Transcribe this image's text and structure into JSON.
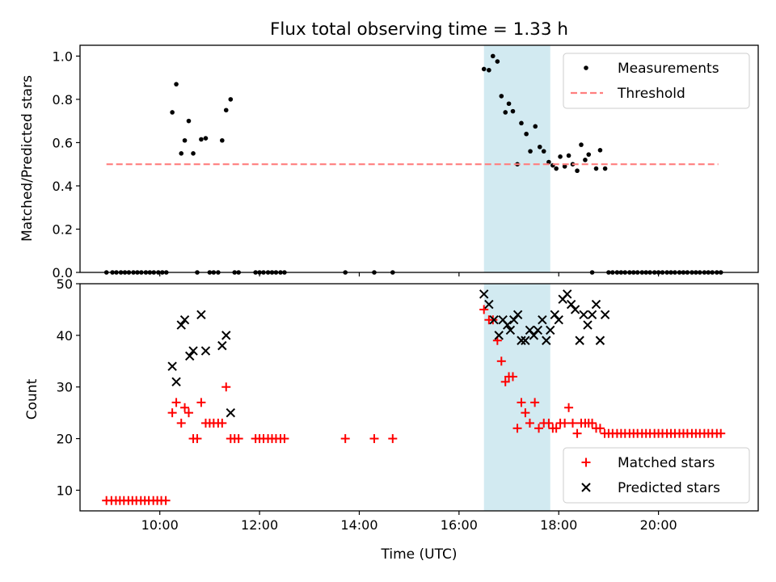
{
  "figure": {
    "title": "Flux total observing time = 1.33 h"
  },
  "chart_data": [
    {
      "type": "scatter",
      "panel": "top",
      "ylabel": "Matched/Predicted stars",
      "xlabel": "",
      "xlim": [
        8.4,
        22.0
      ],
      "ylim": [
        0.0,
        1.05
      ],
      "xticks": [
        10,
        12,
        14,
        16,
        18,
        20
      ],
      "xtick_labels": [
        "10:00",
        "12:00",
        "14:00",
        "16:00",
        "18:00",
        "20:00"
      ],
      "yticks": [
        0.0,
        0.2,
        0.4,
        0.6,
        0.8,
        1.0
      ],
      "ytick_labels": [
        "0.0",
        "0.2",
        "0.4",
        "0.6",
        "0.8",
        "1.0"
      ],
      "shaded_span": {
        "x0": 16.5,
        "x1": 17.83,
        "color": "#add8e6"
      },
      "legend": {
        "position": "top-right",
        "entries": [
          "Measurements",
          "Threshold"
        ]
      },
      "series": [
        {
          "name": "Measurements",
          "marker": "dot",
          "color": "#000000",
          "x": [
            8.93,
            9.05,
            9.13,
            9.22,
            9.3,
            9.38,
            9.47,
            9.55,
            9.63,
            9.72,
            9.8,
            9.88,
            9.97,
            10.05,
            10.13,
            10.25,
            10.33,
            10.43,
            10.5,
            10.58,
            10.67,
            10.75,
            10.83,
            10.92,
            11.0,
            11.08,
            11.17,
            11.25,
            11.33,
            11.42,
            11.5,
            11.58,
            11.92,
            12.0,
            12.08,
            12.17,
            12.25,
            12.33,
            12.42,
            12.5,
            13.72,
            14.3,
            14.67,
            16.5,
            16.6,
            16.68,
            16.77,
            16.85,
            16.93,
            17.0,
            17.08,
            17.17,
            17.25,
            17.35,
            17.43,
            17.53,
            17.62,
            17.7,
            17.8,
            17.88,
            17.95,
            18.03,
            18.12,
            18.2,
            18.28,
            18.37,
            18.45,
            18.53,
            18.6,
            18.67,
            18.75,
            18.83,
            18.93,
            19.0,
            19.08,
            19.17,
            19.25,
            19.33,
            19.42,
            19.5,
            19.58,
            19.67,
            19.75,
            19.83,
            19.92,
            20.0,
            20.08,
            20.17,
            20.25,
            20.33,
            20.42,
            20.5,
            20.58,
            20.67,
            20.75,
            20.83,
            20.92,
            21.0,
            21.08,
            21.17,
            21.25
          ],
          "y": [
            0,
            0,
            0,
            0,
            0,
            0,
            0,
            0,
            0,
            0,
            0,
            0,
            0,
            0,
            0,
            0.74,
            0.87,
            0.55,
            0.61,
            0.7,
            0.55,
            0,
            0.615,
            0.62,
            0,
            0,
            0,
            0.61,
            0.75,
            0.8,
            0,
            0,
            0,
            0,
            0,
            0,
            0,
            0,
            0,
            0,
            0,
            0,
            0,
            0.94,
            0.935,
            1.0,
            0.975,
            0.815,
            0.74,
            0.78,
            0.745,
            0.5,
            0.69,
            0.64,
            0.56,
            0.675,
            0.58,
            0.56,
            0.51,
            0.495,
            0.48,
            0.535,
            0.49,
            0.54,
            0.5,
            0.47,
            0.59,
            0.52,
            0.545,
            0,
            0.48,
            0.565,
            0.48,
            0,
            0,
            0,
            0,
            0,
            0,
            0,
            0,
            0,
            0,
            0,
            0,
            0,
            0,
            0,
            0,
            0,
            0,
            0,
            0,
            0,
            0,
            0,
            0,
            0,
            0,
            0,
            0
          ]
        },
        {
          "name": "Threshold",
          "style": "dashed",
          "color": "#ff7f7f",
          "x": [
            8.93,
            21.2
          ],
          "y": [
            0.5,
            0.5
          ]
        }
      ]
    },
    {
      "type": "scatter",
      "panel": "bottom",
      "ylabel": "Count",
      "xlabel": "Time (UTC)",
      "xlim": [
        8.4,
        22.0
      ],
      "ylim": [
        6,
        50
      ],
      "xticks": [
        10,
        12,
        14,
        16,
        18,
        20
      ],
      "xtick_labels": [
        "10:00",
        "12:00",
        "14:00",
        "16:00",
        "18:00",
        "20:00"
      ],
      "yticks": [
        10,
        20,
        30,
        40,
        50
      ],
      "ytick_labels": [
        "10",
        "20",
        "30",
        "40",
        "50"
      ],
      "shaded_span": {
        "x0": 16.5,
        "x1": 17.83,
        "color": "#add8e6"
      },
      "legend": {
        "position": "bottom-right",
        "entries": [
          "Matched stars",
          "Predicted stars"
        ]
      },
      "series": [
        {
          "name": "Matched stars",
          "marker": "plus",
          "color": "#ff0000",
          "x": [
            8.93,
            9.03,
            9.12,
            9.2,
            9.28,
            9.37,
            9.45,
            9.53,
            9.62,
            9.7,
            9.78,
            9.87,
            9.95,
            10.03,
            10.12,
            10.25,
            10.33,
            10.43,
            10.5,
            10.58,
            10.67,
            10.75,
            10.83,
            10.92,
            11.0,
            11.08,
            11.17,
            11.25,
            11.33,
            11.42,
            11.5,
            11.58,
            11.92,
            12.0,
            12.08,
            12.17,
            12.25,
            12.33,
            12.42,
            12.5,
            13.72,
            14.3,
            14.67,
            16.5,
            16.6,
            16.68,
            16.77,
            16.85,
            16.93,
            17.0,
            17.08,
            17.17,
            17.25,
            17.33,
            17.42,
            17.52,
            17.6,
            17.7,
            17.8,
            17.88,
            17.95,
            18.03,
            18.12,
            18.2,
            18.28,
            18.37,
            18.45,
            18.53,
            18.6,
            18.67,
            18.75,
            18.83,
            18.92,
            19.0,
            19.08,
            19.17,
            19.25,
            19.33,
            19.42,
            19.5,
            19.58,
            19.67,
            19.75,
            19.83,
            19.92,
            20.0,
            20.08,
            20.17,
            20.25,
            20.33,
            20.42,
            20.5,
            20.58,
            20.67,
            20.75,
            20.83,
            20.92,
            21.0,
            21.08,
            21.17,
            21.25
          ],
          "y": [
            8,
            8,
            8,
            8,
            8,
            8,
            8,
            8,
            8,
            8,
            8,
            8,
            8,
            8,
            8,
            25,
            27,
            23,
            26,
            25,
            20,
            20,
            27,
            23,
            23,
            23,
            23,
            23,
            30,
            20,
            20,
            20,
            20,
            20,
            20,
            20,
            20,
            20,
            20,
            20,
            20,
            20,
            20,
            45,
            43,
            43,
            39,
            35,
            31,
            32,
            32,
            22,
            27,
            25,
            23,
            27,
            22,
            23,
            23,
            22,
            22,
            23,
            23,
            26,
            23,
            21,
            23,
            23,
            23,
            23,
            22,
            22,
            21,
            21,
            21,
            21,
            21,
            21,
            21,
            21,
            21,
            21,
            21,
            21,
            21,
            21,
            21,
            21,
            21,
            21,
            21,
            21,
            21,
            21,
            21,
            21,
            21,
            21,
            21,
            21,
            21
          ]
        },
        {
          "name": "Predicted stars",
          "marker": "x",
          "color": "#000000",
          "x": [
            10.25,
            10.33,
            10.43,
            10.5,
            10.6,
            10.67,
            10.83,
            10.92,
            11.25,
            11.33,
            11.42,
            16.5,
            16.6,
            16.7,
            16.8,
            16.88,
            16.97,
            17.03,
            17.1,
            17.18,
            17.25,
            17.33,
            17.42,
            17.5,
            17.58,
            17.67,
            17.75,
            17.83,
            17.92,
            18.0,
            18.08,
            18.17,
            18.25,
            18.33,
            18.42,
            18.5,
            18.58,
            18.67,
            18.75,
            18.83,
            18.93
          ],
          "y": [
            34,
            31,
            42,
            43,
            36,
            37,
            44,
            37,
            38,
            40,
            25,
            48,
            46,
            43,
            40,
            43,
            42,
            41,
            43,
            44,
            39,
            39,
            41,
            40,
            41,
            43,
            39,
            41,
            44,
            43,
            47,
            48,
            46,
            45,
            39,
            44,
            42,
            44,
            46,
            39,
            44
          ]
        }
      ]
    }
  ]
}
